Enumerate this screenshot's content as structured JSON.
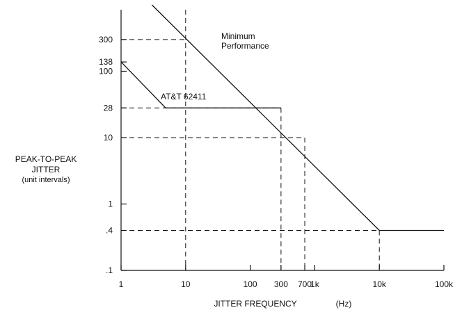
{
  "chart_data": {
    "type": "line",
    "xscale": "log",
    "yscale": "log",
    "xlim": [
      1,
      100000
    ],
    "ylim": [
      0.1,
      1000
    ],
    "xlabel": "JITTER FREQUENCY",
    "xunit": "(Hz)",
    "ylabel": [
      "PEAK-TO-PEAK",
      "JITTER",
      "(unit intervals)"
    ],
    "xticks": [
      {
        "value": 1,
        "label": "1"
      },
      {
        "value": 10,
        "label": "10"
      },
      {
        "value": 100,
        "label": "100"
      },
      {
        "value": 300,
        "label": "300"
      },
      {
        "value": 700,
        "label": "700"
      },
      {
        "value": 1000,
        "label": "1k"
      },
      {
        "value": 10000,
        "label": "10k"
      },
      {
        "value": 100000,
        "label": "100k"
      }
    ],
    "yticks": [
      {
        "value": 0.1,
        "label": ".1"
      },
      {
        "value": 0.4,
        "label": ".4"
      },
      {
        "value": 1,
        "label": "1"
      },
      {
        "value": 10,
        "label": "10"
      },
      {
        "value": 28,
        "label": "28"
      },
      {
        "value": 100,
        "label": "100"
      },
      {
        "value": 138,
        "label": "138"
      },
      {
        "value": 300,
        "label": "300"
      }
    ],
    "series": [
      {
        "name": "Minimum Performance",
        "label_lines": [
          "Minimum",
          "Performance"
        ],
        "points": [
          [
            3,
            1000
          ],
          [
            10000,
            0.4
          ],
          [
            100000,
            0.4
          ]
        ]
      },
      {
        "name": "AT&T 62411",
        "label_lines": [
          "AT&T 62411"
        ],
        "points": [
          [
            1,
            138
          ],
          [
            4.9,
            28
          ],
          [
            300,
            28
          ]
        ]
      }
    ],
    "reference_lines": [
      {
        "y": 300,
        "x_to": 10
      },
      {
        "y": 28,
        "x_to": 300
      },
      {
        "y": 10,
        "x_to": 700
      },
      {
        "y": 0.4,
        "x_to": 10000
      },
      {
        "x": 10,
        "y_to": 1000
      },
      {
        "x": 300,
        "y_to": 28
      },
      {
        "x": 700,
        "y_to": 10
      },
      {
        "x": 10000,
        "y_to": 0.4
      }
    ]
  }
}
